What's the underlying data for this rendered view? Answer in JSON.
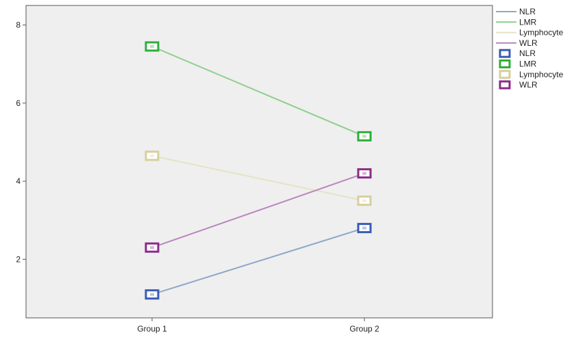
{
  "chart_data": {
    "type": "line",
    "categories": [
      "Group 1",
      "Group 2"
    ],
    "ylim": [
      0.5,
      8.5
    ],
    "yticks": [
      2,
      4,
      6,
      8
    ],
    "grid": false,
    "legend_position": "top-right",
    "background": "#efefef",
    "series": [
      {
        "name": "NLR",
        "values": [
          1.1,
          2.8
        ],
        "color": "#8ea6c8",
        "marker_color": "#3a5bb5"
      },
      {
        "name": "LMR",
        "values": [
          7.45,
          5.15
        ],
        "color": "#8fcf8f",
        "marker_color": "#2fae3a"
      },
      {
        "name": "Lymphocyte",
        "values": [
          4.65,
          3.5
        ],
        "color": "#e6e2c4",
        "marker_color": "#d6cf9c"
      },
      {
        "name": "WLR",
        "values": [
          2.3,
          4.2
        ],
        "color": "#b986bd",
        "marker_color": "#8a2a8c"
      }
    ]
  }
}
